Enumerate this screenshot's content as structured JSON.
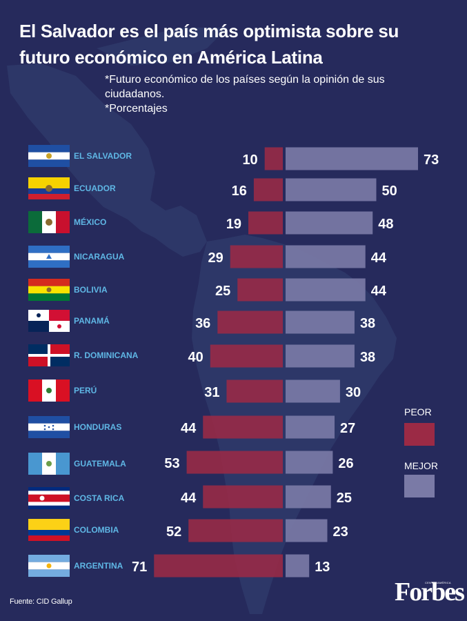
{
  "title": "El Salvador es el país más optimista sobre su futuro económico en América Latina",
  "subtitle": [
    "*Futuro económico de los países según la opinión de sus ciudadanos.",
    "*Porcentajes"
  ],
  "source": "Fuente: CID Gallup",
  "brand": "Forbes",
  "brand_edition": "CENTROAMÉRICA",
  "colors": {
    "background": "#262a5c",
    "peor": "#9b2a45",
    "mejor": "#7a7aa6",
    "country_label": "#5fb7e5",
    "map": "#323c6e"
  },
  "chart_data": {
    "type": "bar",
    "orientation": "horizontal-diverging",
    "title": "El Salvador es el país más optimista sobre su futuro económico en América Latina",
    "unit": "%",
    "categories": [
      "EL SALVADOR",
      "ECUADOR",
      "MÉXICO",
      "NICARAGUA",
      "BOLIVIA",
      "PANAMÁ",
      "R. DOMINICANA",
      "PERÚ",
      "HONDURAS",
      "GUATEMALA",
      "COSTA RICA",
      "COLOMBIA",
      "ARGENTINA"
    ],
    "series": [
      {
        "name": "PEOR",
        "values": [
          10,
          16,
          19,
          29,
          25,
          36,
          40,
          31,
          44,
          53,
          44,
          52,
          71
        ]
      },
      {
        "name": "MEJOR",
        "values": [
          73,
          50,
          48,
          44,
          44,
          38,
          38,
          30,
          27,
          26,
          25,
          23,
          13
        ]
      }
    ],
    "legend": [
      "PEOR",
      "MEJOR"
    ],
    "legend_position": "right"
  }
}
